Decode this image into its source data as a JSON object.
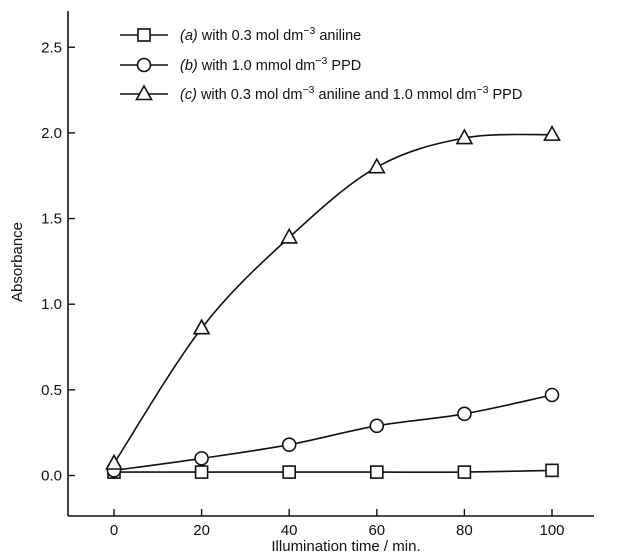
{
  "chart_data": {
    "type": "line",
    "xlabel": "Illumination time / min.",
    "ylabel": "Absorbance",
    "xlim": [
      -10,
      110
    ],
    "ylim": [
      -0.06,
      2.78
    ],
    "x_ticks": [
      0,
      20,
      40,
      60,
      80,
      100
    ],
    "x_tick_labels": [
      "0",
      "20",
      "40",
      "60",
      "80",
      "100"
    ],
    "y_ticks": [
      0.0,
      0.5,
      1.0,
      1.5,
      2.0,
      2.5
    ],
    "y_tick_labels": [
      "0.0",
      "0.5",
      "1.0",
      "1.5",
      "2.0",
      "2.5"
    ],
    "grid": false,
    "legend_position": "top-left",
    "x": [
      0,
      20,
      40,
      60,
      80,
      100
    ],
    "series": [
      {
        "name": "(a) with 0.3 mol dm−3 aniline",
        "legend_letter": "(a)",
        "legend_before": " with 0.3 mol dm",
        "legend_sup": "−3",
        "legend_after": " aniline",
        "marker": "square",
        "values": [
          0.02,
          0.02,
          0.02,
          0.02,
          0.02,
          0.03
        ]
      },
      {
        "name": "(b) with 1.0 mmol dm−3 PPD",
        "legend_letter": "(b)",
        "legend_before": " with 1.0 mmol dm",
        "legend_sup": "−3",
        "legend_after": " PPD",
        "marker": "circle",
        "values": [
          0.03,
          0.1,
          0.18,
          0.29,
          0.36,
          0.47
        ]
      },
      {
        "name": "(c) with 0.3 mol dm−3 aniline and 1.0 mmol dm−3 PPD",
        "legend_letter": "(c)",
        "legend_before": " with 0.3 mol dm",
        "legend_sup": "−3",
        "legend_after": " aniline and 1.0 mmol dm",
        "legend_sup2": "−3",
        "legend_after2": " PPD",
        "marker": "triangle",
        "values": [
          0.07,
          0.86,
          1.39,
          1.8,
          1.97,
          1.99
        ]
      }
    ]
  }
}
